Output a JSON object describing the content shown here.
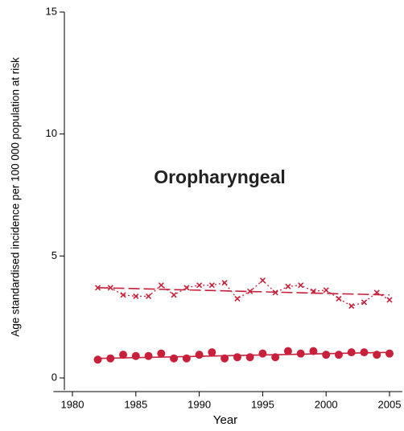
{
  "chart_data": {
    "type": "line",
    "annotation": "Oropharyngeal",
    "ylabel": "Age standardised incidence per 100 000 population at risk",
    "xlabel": "Year",
    "x": [
      1982,
      1983,
      1984,
      1985,
      1986,
      1987,
      1988,
      1989,
      1990,
      1991,
      1992,
      1993,
      1994,
      1995,
      1996,
      1997,
      1998,
      1999,
      2000,
      2001,
      2002,
      2003,
      2004,
      2005
    ],
    "series": [
      {
        "color": "#c8203a",
        "marker": "x",
        "line": "dotted",
        "values": [
          3.7,
          3.7,
          3.4,
          3.35,
          3.35,
          3.8,
          3.4,
          3.7,
          3.8,
          3.8,
          3.9,
          3.25,
          3.55,
          4.0,
          3.5,
          3.75,
          3.8,
          3.55,
          3.6,
          3.25,
          2.95,
          3.1,
          3.5,
          3.2
        ]
      },
      {
        "color": "#c8203a",
        "marker": "circle",
        "line": "none",
        "values": [
          0.75,
          0.8,
          0.95,
          0.9,
          0.9,
          1.0,
          0.8,
          0.8,
          0.95,
          1.05,
          0.8,
          0.85,
          0.85,
          1.0,
          0.85,
          1.1,
          1.0,
          1.1,
          0.95,
          0.95,
          1.05,
          1.05,
          0.95,
          1.0
        ]
      },
      {
        "color": "#c8203a",
        "marker": "none",
        "line": "dashed",
        "x": [
          1982,
          2005
        ],
        "values": [
          3.7,
          3.4
        ]
      },
      {
        "color": "#c8203a",
        "marker": "none",
        "line": "solid",
        "x": [
          1982,
          2005
        ],
        "values": [
          0.8,
          1.05
        ]
      }
    ],
    "xlim": [
      1978.5,
      2006
    ],
    "xticks": [
      1980,
      1985,
      1990,
      1995,
      2000,
      2005
    ],
    "ylim": [
      -0.5,
      15
    ],
    "yticks": [
      0,
      5,
      10,
      15
    ]
  }
}
